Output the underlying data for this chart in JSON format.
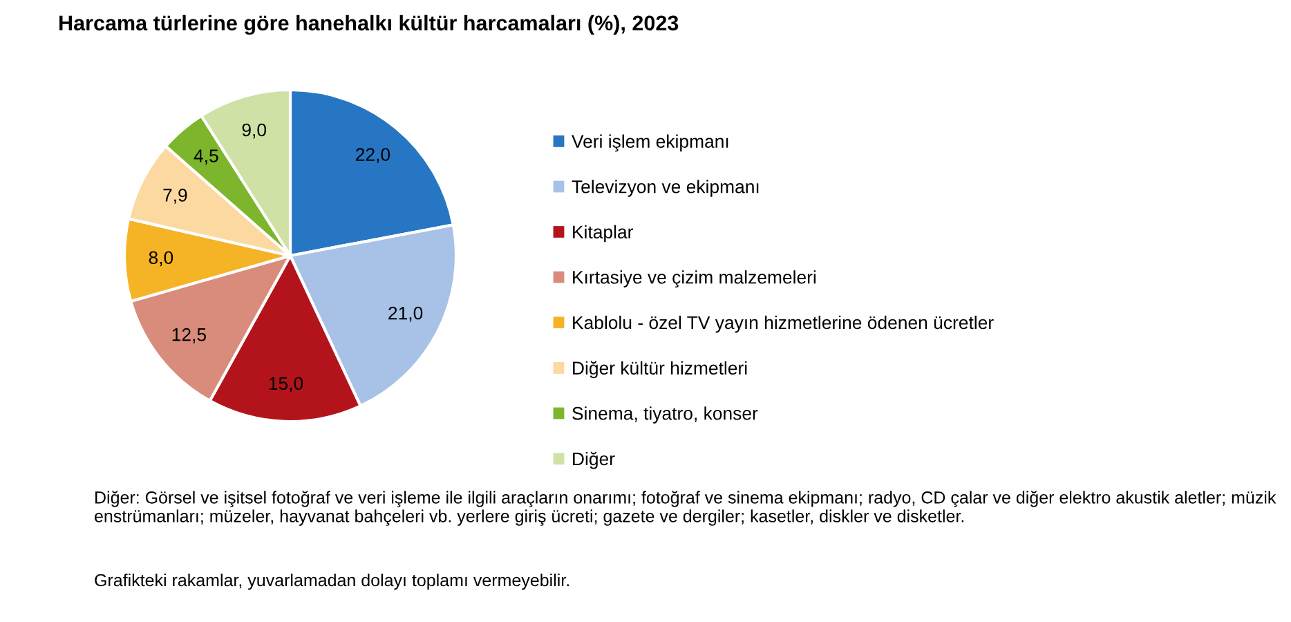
{
  "chart_data": {
    "type": "pie",
    "title": "Harcama türlerine göre hanehalkı kültür harcamaları (%), 2023",
    "categories": [
      "Veri işlem ekipmanı",
      "Televizyon ve ekipmanı",
      "Kitaplar",
      "Kırtasiye ve çizim malzemeleri",
      "Kablolu - özel TV yayın hizmetlerine ödenen ücretler",
      "Diğer kültür hizmetleri",
      "Sinema, tiyatro, konser",
      "Diğer"
    ],
    "values": [
      22.0,
      21.0,
      15.0,
      12.5,
      8.0,
      7.9,
      4.5,
      9.0
    ],
    "value_labels": [
      "22,0",
      "21,0",
      "15,0",
      "12,5",
      "8,0",
      "7,9",
      "4,5",
      "9,0"
    ],
    "colors": [
      "#2776c3",
      "#a7c2e6",
      "#b3141b",
      "#d98c7c",
      "#f5b326",
      "#fbd9a1",
      "#7db52d",
      "#cfe1a4"
    ],
    "legend": "right",
    "annotations": [
      "Diğer: Görsel ve işitsel fotoğraf ve veri işleme ile ilgili araçların onarımı; fotoğraf ve sinema ekipmanı; radyo, CD çalar ve diğer elektro akustik aletler; müzik enstrümanları; müzeler, hayvanat bahçeleri vb. yerlere giriş ücreti; gazete ve dergiler; kasetler, diskler ve disketler.",
      "Grafikteki rakamlar, yuvarlamadan dolayı toplamı vermeyebilir."
    ]
  }
}
